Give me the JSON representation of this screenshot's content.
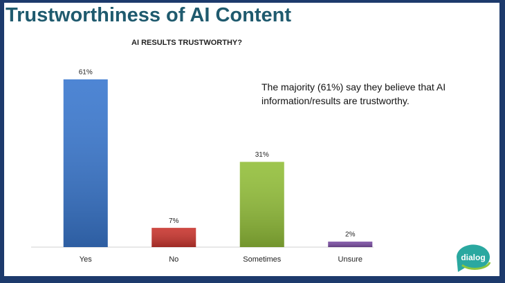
{
  "slide_title": "Trustworthiness of AI Content",
  "annotation": "The majority (61%) say they believe that AI information/results are trustworthy.",
  "logo": "dialog",
  "chart_data": {
    "type": "bar",
    "title": "AI RESULTS TRUSTWORTHY?",
    "categories": [
      "Yes",
      "No",
      "Sometimes",
      "Unsure"
    ],
    "values": [
      61,
      7,
      31,
      2
    ],
    "value_labels": [
      "61%",
      "7%",
      "31%",
      "2%"
    ],
    "colors": [
      "#3a78cf",
      "#c9352e",
      "#93bf3a",
      "#7b4ea3"
    ]
  }
}
